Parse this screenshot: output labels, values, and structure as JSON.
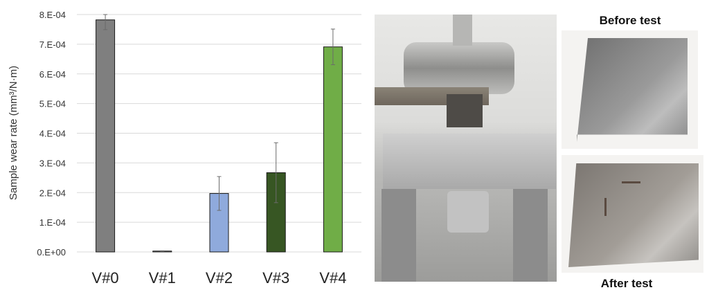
{
  "chart_data": {
    "type": "bar",
    "title": "",
    "xlabel": "",
    "ylabel": "Sample wear rate (mm³/N·m)",
    "categories": [
      "V#0",
      "V#1",
      "V#2",
      "V#3",
      "V#4"
    ],
    "values": [
      0.000782,
      3e-06,
      0.000197,
      0.000267,
      0.000691
    ],
    "errors": [
      3.3e-05,
      1e-06,
      5.7e-05,
      0.000101,
      6e-05
    ],
    "colors": [
      "#7f7f7f",
      "#a5a5a5",
      "#8faadc",
      "#375623",
      "#70ad47"
    ],
    "ylim": [
      0,
      0.0008
    ],
    "yticks": [
      "0.E+00",
      "1.E-04",
      "2.E-04",
      "3.E-04",
      "4.E-04",
      "5.E-04",
      "6.E-04",
      "7.E-04",
      "8.E-04"
    ],
    "grid": true,
    "legend": "none"
  },
  "photos": {
    "rig_label": "",
    "before_caption": "Before test",
    "after_caption": "After test"
  }
}
